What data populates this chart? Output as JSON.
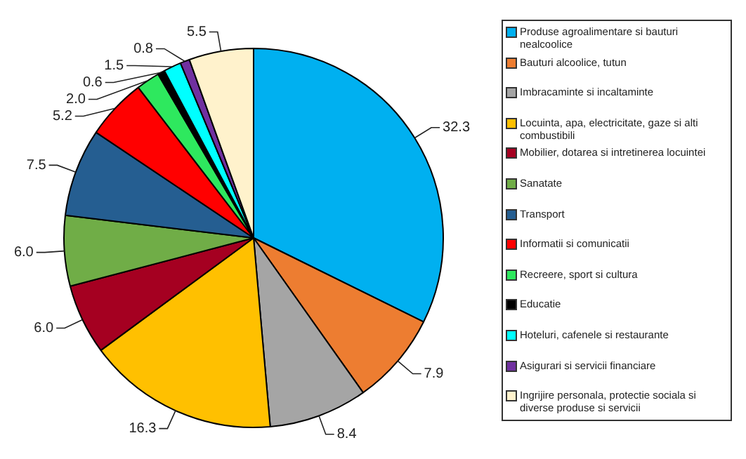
{
  "chart_data": {
    "type": "pie",
    "categories": [
      "Produse agroalimentare si bauturi nealcoolice",
      "Bauturi alcoolice, tutun",
      "Imbracaminte si incaltaminte",
      "Locuinta, apa, electricitate, gaze si alti combustibili",
      "Mobilier, dotarea si intretinerea locuintei",
      "Sanatate",
      "Transport",
      "Informatii si comunicatii",
      "Recreere, sport si cultura",
      "Educatie",
      "Hoteluri, cafenele si restaurante",
      "Asigurari si servicii financiare",
      "Ingrijire personala, protectie sociala si diverse produse si servicii"
    ],
    "values": [
      32.3,
      7.9,
      8.4,
      16.3,
      6.0,
      6.0,
      7.5,
      5.2,
      2.0,
      0.6,
      1.5,
      0.8,
      5.5
    ],
    "colors": [
      "#00b0f0",
      "#ed7d31",
      "#a5a5a5",
      "#ffc000",
      "#a50021",
      "#70ad47",
      "#255e91",
      "#ff0000",
      "#2ee85e",
      "#000000",
      "#00ffff",
      "#7030a0",
      "#fff2cc"
    ],
    "value_labels": [
      "32.3",
      "7.9",
      "8.4",
      "16.3",
      "6.0",
      "6.0",
      "7.5",
      "5.2",
      "2.0",
      "0.6",
      "1.5",
      "0.8",
      "5.5"
    ],
    "legend": "right"
  }
}
